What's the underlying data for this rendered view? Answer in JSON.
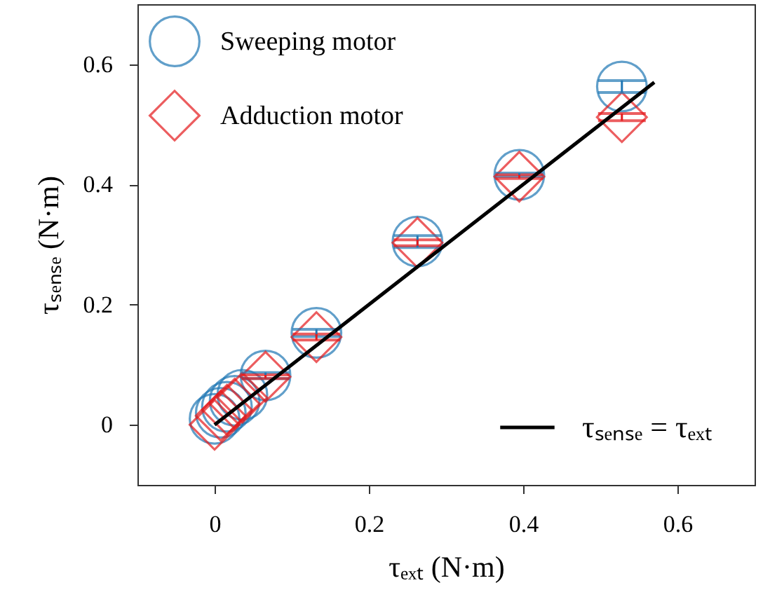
{
  "chart_data": {
    "type": "scatter",
    "xlabel": "τₑₓₜ (N·m)",
    "ylabel": "τₛₑₙₛₑ (N·m)",
    "x": [
      0,
      0.008,
      0.016,
      0.026,
      0.036,
      0.066,
      0.132,
      0.263,
      0.395,
      0.528
    ],
    "series": [
      {
        "name": "Sweeping motor",
        "color": "#1f77b4",
        "marker": "circle",
        "values": [
          0.01,
          0.02,
          0.03,
          0.04,
          0.05,
          0.082,
          0.153,
          0.305,
          0.416,
          0.563
        ],
        "errors": [
          null,
          null,
          null,
          null,
          null,
          0.005,
          0.006,
          0.01,
          0.003,
          0.01
        ]
      },
      {
        "name": "Adduction motor",
        "color": "#e41a1c",
        "marker": "diamond",
        "values": [
          0.0,
          0.015,
          0.025,
          0.035,
          0.045,
          0.08,
          0.146,
          0.303,
          0.413,
          0.512
        ],
        "errors": [
          null,
          null,
          null,
          null,
          null,
          0.003,
          0.005,
          0.005,
          0.003,
          0.006
        ]
      },
      {
        "name": "τₛₑₙₛₑ = τₑₓₜ",
        "type": "line",
        "color": "#000000",
        "x": [
          0,
          0.57
        ],
        "values": [
          0,
          0.57
        ]
      }
    ],
    "xlim": [
      -0.1,
      0.7
    ],
    "ylim": [
      -0.1,
      0.7
    ],
    "xticks": [
      0,
      0.2,
      0.4,
      0.6
    ],
    "yticks": [
      0,
      0.2,
      0.4,
      0.6
    ],
    "legend": "top left"
  }
}
